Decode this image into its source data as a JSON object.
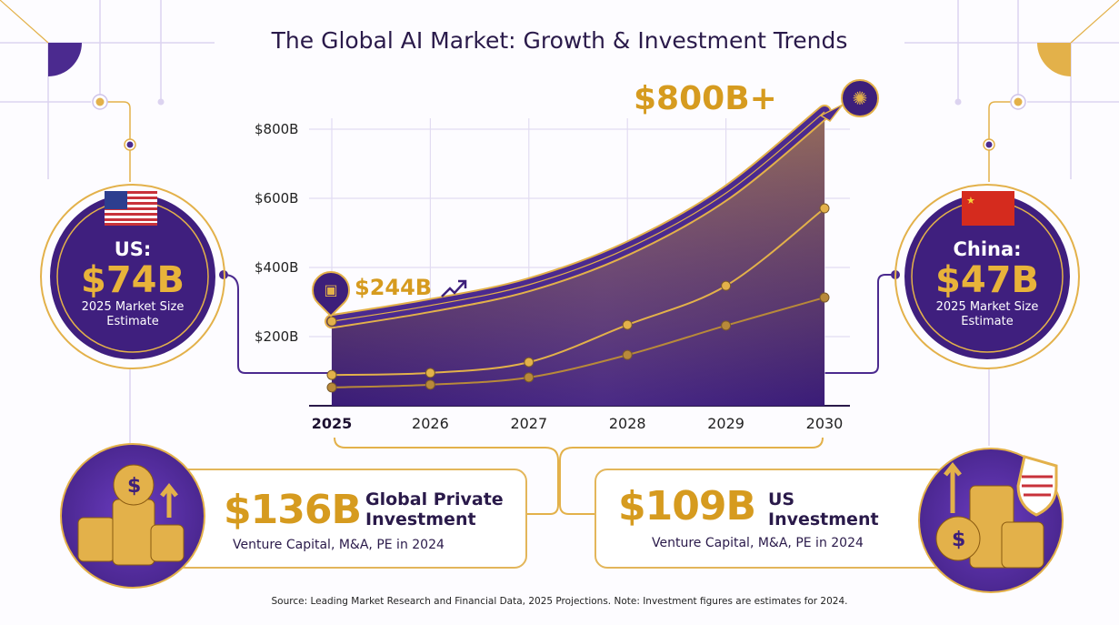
{
  "title": "The Global AI Market: Growth & Investment Trends",
  "chart_data": {
    "type": "area",
    "title": "The Global AI Market: Growth & Investment Trends",
    "categories": [
      "2025",
      "2026",
      "2027",
      "2028",
      "2029",
      "2030"
    ],
    "x_tick_labels": [
      "2025",
      "2026",
      "2027",
      "2028",
      "2029",
      "2030"
    ],
    "y_tick_labels": [
      "$200B",
      "$400B",
      "$600B",
      "$800B"
    ],
    "y_ticks": [
      200,
      400,
      600,
      800
    ],
    "ylim": [
      0,
      850
    ],
    "grid": true,
    "series": [
      {
        "values": [
          244,
          290,
          350,
          455,
          615,
          850
        ],
        "color": "#4b2a8f"
      },
      {
        "values": [
          89,
          95,
          126,
          234,
          347,
          571
        ],
        "color": "#e3b14a"
      },
      {
        "values": [
          53,
          61,
          82,
          147,
          232,
          313
        ],
        "color": "#b8893a"
      }
    ],
    "annotations": {
      "start_label": "$244B",
      "end_label": "$800B+"
    }
  },
  "colors": {
    "purple": "#3d1f7a",
    "gold": "#e3b14a",
    "light_line": "#dcd3f0"
  },
  "us_badge": {
    "country": "US:",
    "value": "$74B",
    "sub1": "2025 Market Size",
    "sub2": "Estimate",
    "icon": "us-flag-icon"
  },
  "china_badge": {
    "country": "China:",
    "value": "$47B",
    "sub1": "2025 Market Size",
    "sub2": "Estimate",
    "icon": "china-flag-icon"
  },
  "global_card": {
    "value": "$136B",
    "title1": "Global Private",
    "title2": "Investment",
    "sub": "Venture Capital, M&A, PE in 2024",
    "icon": "coin-stack-icon"
  },
  "us_card": {
    "value": "$109B",
    "title1": "US",
    "title2": "Investment",
    "sub": "Venture Capital, M&A, PE in 2024",
    "icon": "coin-stack-shield-icon"
  },
  "source": "Source: Leading Market Research and Financial Data, 2025 Projections. Note: Investment figures are estimates for 2024."
}
